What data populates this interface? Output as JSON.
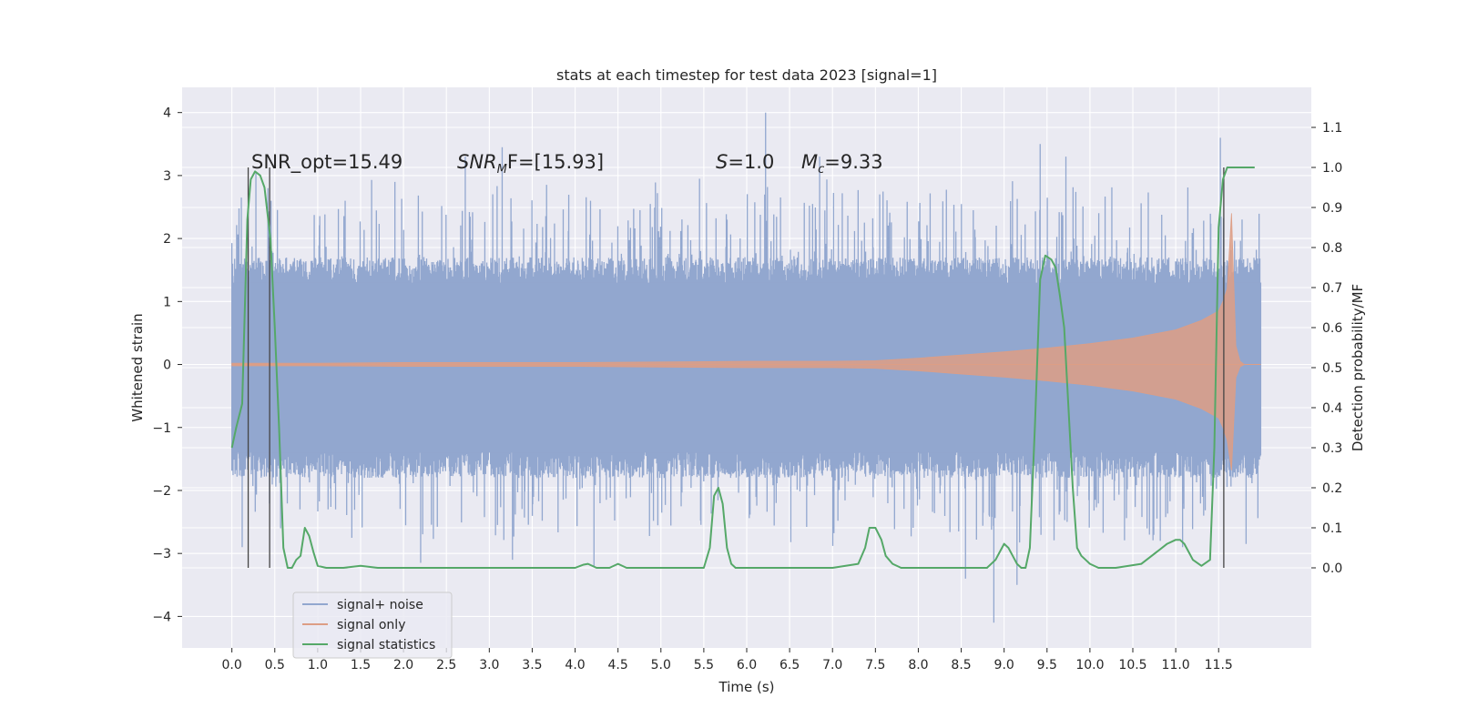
{
  "chart_data": {
    "type": "line",
    "title": "stats at each timestep for test data 2023 [signal=1]",
    "xlabel": "Time (s)",
    "ylabel": "Whitened strain",
    "ylabel_right": "Detection probability/MF",
    "xlim": [
      -0.58,
      12.58
    ],
    "ylim": [
      -4.5,
      4.4
    ],
    "ylim_right": [
      -0.2,
      1.2
    ],
    "x_ticks": [
      0.0,
      0.5,
      1.0,
      1.5,
      2.0,
      2.5,
      3.0,
      3.5,
      4.0,
      4.5,
      5.0,
      5.5,
      6.0,
      6.5,
      7.0,
      7.5,
      8.0,
      8.5,
      9.0,
      9.5,
      10.0,
      10.5,
      11.0,
      11.5
    ],
    "x_tick_labels": [
      "0.0",
      "0.5",
      "1.0",
      "1.5",
      "2.0",
      "2.5",
      "3.0",
      "3.5",
      "4.0",
      "4.5",
      "5.0",
      "5.5",
      "6.0",
      "6.5",
      "7.0",
      "7.5",
      "8.0",
      "8.5",
      "9.0",
      "9.5",
      "10.0",
      "10.5",
      "11.0",
      "11.5"
    ],
    "y_ticks": [
      -4,
      -3,
      -2,
      -1,
      0,
      1,
      2,
      3,
      4
    ],
    "y_tick_labels": [
      "−4",
      "−3",
      "−2",
      "−1",
      "0",
      "1",
      "2",
      "3",
      "4"
    ],
    "y_ticks_right": [
      0.0,
      0.1,
      0.2,
      0.3,
      0.4,
      0.5,
      0.6,
      0.7,
      0.8,
      0.9,
      1.0,
      1.1
    ],
    "y_tick_labels_right": [
      "0.0",
      "0.1",
      "0.2",
      "0.3",
      "0.4",
      "0.5",
      "0.6",
      "0.7",
      "0.8",
      "0.9",
      "1.0",
      "1.1"
    ],
    "grid": true,
    "legend_placement": "lower-left",
    "annotations": {
      "snr_opt": "SNR_opt=15.49",
      "snr_mf_italic": "SNR",
      "snr_mf_sub": "M",
      "snr_mf_rest": "F=[15.93]",
      "s_italic": "S",
      "s_rest": "=1.0",
      "mc_italic": "M",
      "mc_sub": "c",
      "mc_rest": "=9.33"
    },
    "vertical_markers_x": [
      0.19,
      0.44,
      11.56
    ],
    "noise": {
      "x_start": 0.0,
      "x_end": 11.99,
      "typical_range": [
        -1.3,
        1.2
      ],
      "seed": 2023,
      "spikes": [
        {
          "x": 0.11,
          "y": 2.65
        },
        {
          "x": 0.28,
          "y": 3.05
        },
        {
          "x": 0.42,
          "y": 2.8
        },
        {
          "x": 0.12,
          "y": -2.9
        },
        {
          "x": 1.32,
          "y": 2.6
        },
        {
          "x": 1.9,
          "y": 2.9
        },
        {
          "x": 2.72,
          "y": 3.3
        },
        {
          "x": 3.15,
          "y": 3.45
        },
        {
          "x": 3.27,
          "y": -3.1
        },
        {
          "x": 2.2,
          "y": -3.15
        },
        {
          "x": 4.22,
          "y": -3.2
        },
        {
          "x": 5.45,
          "y": 2.95
        },
        {
          "x": 6.22,
          "y": 4.0
        },
        {
          "x": 6.85,
          "y": 3.3
        },
        {
          "x": 7.55,
          "y": 2.7
        },
        {
          "x": 8.55,
          "y": -3.4
        },
        {
          "x": 8.88,
          "y": -4.1
        },
        {
          "x": 9.15,
          "y": -3.5
        },
        {
          "x": 9.42,
          "y": 3.5
        },
        {
          "x": 9.72,
          "y": 3.3
        },
        {
          "x": 10.82,
          "y": -2.8
        },
        {
          "x": 11.08,
          "y": -2.9
        },
        {
          "x": 11.52,
          "y": 3.6
        },
        {
          "x": 11.82,
          "y": -2.85
        }
      ],
      "color": "#92a7cf"
    },
    "series": [
      {
        "name": "signal+ noise",
        "color": "#92a7cf"
      },
      {
        "name": "signal only",
        "color": "#dd9e85",
        "x": [
          0.0,
          1.0,
          2.0,
          3.0,
          4.0,
          5.0,
          6.0,
          7.0,
          7.5,
          8.0,
          8.5,
          9.0,
          9.5,
          10.0,
          10.5,
          11.0,
          11.3,
          11.5,
          11.55,
          11.6,
          11.65,
          11.7,
          11.75,
          11.8,
          11.99
        ],
        "envelope": [
          0.02,
          0.02,
          0.03,
          0.03,
          0.03,
          0.04,
          0.05,
          0.05,
          0.06,
          0.1,
          0.15,
          0.2,
          0.26,
          0.33,
          0.42,
          0.55,
          0.7,
          0.85,
          1.0,
          1.2,
          2.4,
          0.3,
          0.05,
          0.0,
          0.0
        ]
      },
      {
        "name": "signal statistics",
        "color": "#55a868",
        "axis": "right",
        "x": [
          0.0,
          0.05,
          0.12,
          0.18,
          0.22,
          0.27,
          0.33,
          0.38,
          0.45,
          0.5,
          0.55,
          0.6,
          0.65,
          0.7,
          0.75,
          0.8,
          0.85,
          0.9,
          0.95,
          1.0,
          1.1,
          1.3,
          1.5,
          1.7,
          2.0,
          2.5,
          3.0,
          3.5,
          4.0,
          4.1,
          4.15,
          4.25,
          4.4,
          4.5,
          4.6,
          4.8,
          5.0,
          5.2,
          5.5,
          5.57,
          5.62,
          5.67,
          5.72,
          5.77,
          5.82,
          5.87,
          5.95,
          6.1,
          6.5,
          7.0,
          7.3,
          7.38,
          7.43,
          7.5,
          7.57,
          7.62,
          7.7,
          7.8,
          8.0,
          8.5,
          8.8,
          8.9,
          8.95,
          9.0,
          9.05,
          9.1,
          9.15,
          9.2,
          9.25,
          9.3,
          9.36,
          9.42,
          9.48,
          9.55,
          9.6,
          9.65,
          9.7,
          9.75,
          9.8,
          9.85,
          9.9,
          9.95,
          10.0,
          10.1,
          10.3,
          10.6,
          10.9,
          11.0,
          11.05,
          11.1,
          11.15,
          11.2,
          11.3,
          11.4,
          11.45,
          11.5,
          11.55,
          11.6,
          11.65,
          11.7,
          11.75,
          11.8,
          11.85,
          11.92
        ],
        "values": [
          0.3,
          0.35,
          0.41,
          0.87,
          0.97,
          0.99,
          0.98,
          0.95,
          0.82,
          0.6,
          0.35,
          0.05,
          0.0,
          0.0,
          0.02,
          0.03,
          0.1,
          0.08,
          0.04,
          0.005,
          0.0,
          0.0,
          0.005,
          0.0,
          0.0,
          0.0,
          0.0,
          0.0,
          0.0,
          0.008,
          0.01,
          0.0,
          0.0,
          0.01,
          0.0,
          0.0,
          0.0,
          0.0,
          0.0,
          0.05,
          0.18,
          0.2,
          0.16,
          0.05,
          0.01,
          0.0,
          0.0,
          0.0,
          0.0,
          0.0,
          0.01,
          0.05,
          0.1,
          0.1,
          0.07,
          0.03,
          0.01,
          0.0,
          0.0,
          0.0,
          0.0,
          0.02,
          0.04,
          0.06,
          0.05,
          0.03,
          0.01,
          0.0,
          0.0,
          0.05,
          0.36,
          0.72,
          0.78,
          0.77,
          0.75,
          0.68,
          0.6,
          0.4,
          0.2,
          0.05,
          0.03,
          0.02,
          0.01,
          0.0,
          0.0,
          0.01,
          0.06,
          0.07,
          0.07,
          0.06,
          0.04,
          0.02,
          0.005,
          0.02,
          0.3,
          0.85,
          0.97,
          1.0,
          1.0,
          1.0,
          1.0,
          1.0,
          1.0,
          1.0
        ]
      }
    ]
  }
}
